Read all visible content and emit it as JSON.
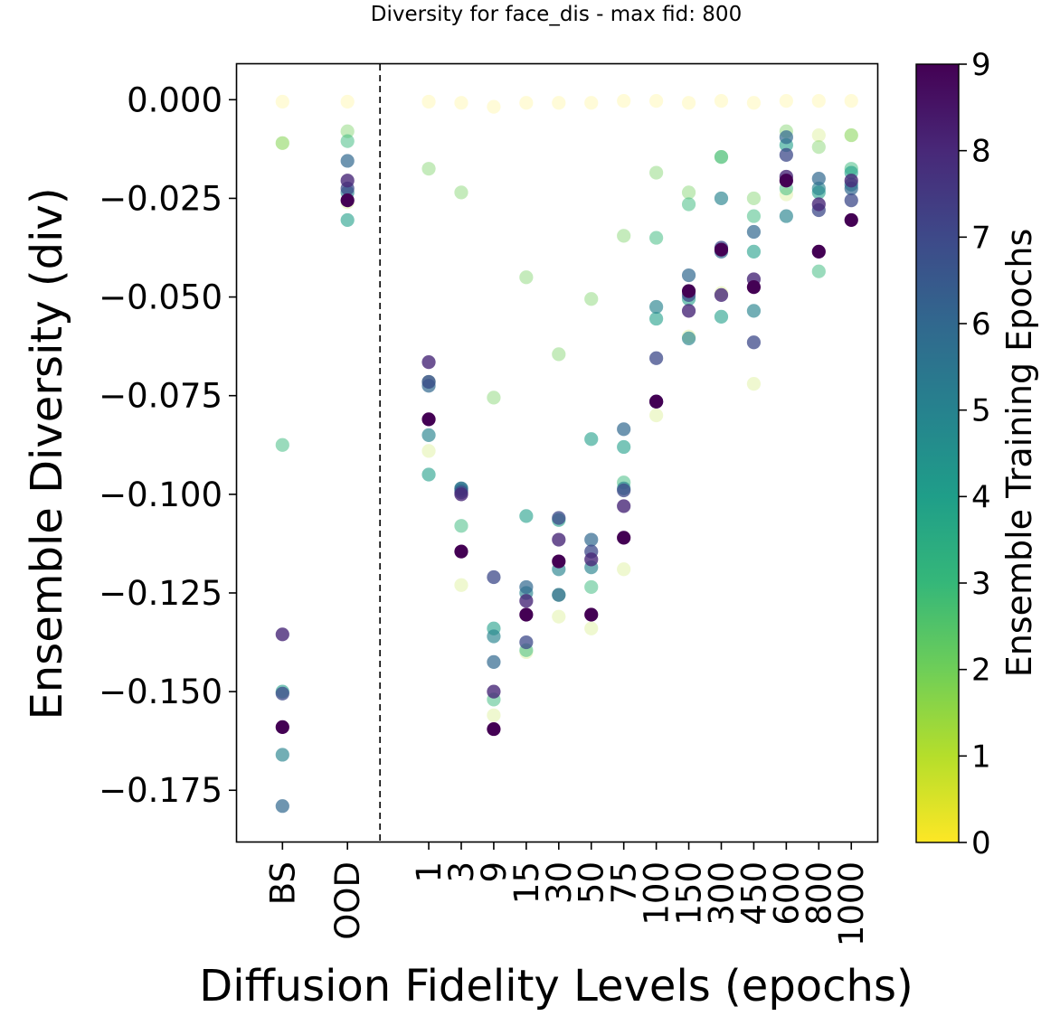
{
  "chart_data": {
    "type": "scatter",
    "title": "Diversity for face_dis - max fid: 800",
    "xlabel": "Diffusion Fidelity Levels (epochs)",
    "ylabel": "Ensemble Diversity (div)",
    "colorbar_label": "Ensemble Training Epochs",
    "colorbar_ticks": [
      "0",
      "1",
      "2",
      "3",
      "4",
      "5",
      "6",
      "7",
      "8",
      "9"
    ],
    "colorbar_range": [
      0,
      9
    ],
    "colormap": "viridis_r",
    "categories": [
      "BS",
      "OOD",
      "1",
      "3",
      "9",
      "15",
      "30",
      "50",
      "75",
      "100",
      "150",
      "300",
      "450",
      "600",
      "800",
      "1000"
    ],
    "category_positions": [
      0,
      1,
      2.25,
      2.75,
      3.25,
      3.75,
      4.25,
      4.75,
      5.25,
      5.75,
      6.25,
      6.75,
      7.25,
      7.75,
      8.25,
      8.75
    ],
    "separator_position": 1.5,
    "xlim": [
      -0.7,
      9.15
    ],
    "ylim": [
      -0.188,
      0.009
    ],
    "y_ticks": [
      0.0,
      -0.025,
      -0.05,
      -0.075,
      -0.1,
      -0.125,
      -0.15,
      -0.175
    ],
    "y_tick_labels": [
      "0.000",
      "−0.025",
      "−0.050",
      "−0.075",
      "−0.100",
      "−0.125",
      "−0.150",
      "−0.175"
    ],
    "series": [
      {
        "name": "0",
        "values": [
          -0.0005,
          -0.0005,
          -0.0005,
          -0.0008,
          -0.0018,
          -0.0008,
          -0.0008,
          -0.0008,
          -0.0003,
          -0.0003,
          -0.0008,
          -0.0003,
          -0.0008,
          -0.0003,
          -0.0003,
          -0.0003
        ]
      },
      {
        "name": "1",
        "values": [
          -0.011,
          -0.026,
          -0.089,
          -0.123,
          -0.156,
          -0.14,
          -0.131,
          -0.134,
          -0.119,
          -0.08,
          -0.06,
          -0.049,
          -0.072,
          -0.024,
          -0.009,
          -0.009
        ]
      },
      {
        "name": "2",
        "values": [
          -0.011,
          -0.008,
          -0.0175,
          -0.0235,
          -0.0755,
          -0.045,
          -0.0645,
          -0.0505,
          -0.0345,
          -0.0185,
          -0.0235,
          -0.0145,
          -0.025,
          -0.008,
          -0.012,
          -0.009
        ]
      },
      {
        "name": "3",
        "values": [
          -0.0875,
          -0.0105,
          -0.0715,
          -0.108,
          -0.152,
          -0.1395,
          -0.1255,
          -0.1235,
          -0.097,
          -0.035,
          -0.0265,
          -0.0145,
          -0.0295,
          -0.0225,
          -0.0435,
          -0.0175
        ]
      },
      {
        "name": "4",
        "values": [
          -0.15,
          -0.0305,
          -0.095,
          -0.0985,
          -0.134,
          -0.1055,
          -0.1065,
          -0.086,
          -0.088,
          -0.0555,
          -0.0505,
          -0.055,
          -0.0385,
          -0.0115,
          -0.0235,
          -0.0185
        ]
      },
      {
        "name": "5",
        "values": [
          -0.166,
          -0.0235,
          -0.085,
          -0.099,
          -0.136,
          -0.125,
          -0.119,
          -0.1185,
          -0.0985,
          -0.0525,
          -0.0605,
          -0.025,
          -0.0535,
          -0.0295,
          -0.0225,
          -0.0215
        ]
      },
      {
        "name": "6",
        "values": [
          -0.179,
          -0.0155,
          -0.0725,
          -0.0985,
          -0.1425,
          -0.1235,
          -0.1255,
          -0.1115,
          -0.0835,
          -0.0765,
          -0.0445,
          -0.0385,
          -0.0335,
          -0.0095,
          -0.02,
          -0.0225
        ]
      },
      {
        "name": "7",
        "values": [
          -0.1505,
          -0.0225,
          -0.0715,
          -0.0995,
          -0.121,
          -0.1375,
          -0.106,
          -0.1145,
          -0.099,
          -0.0655,
          -0.0495,
          -0.0375,
          -0.0615,
          -0.014,
          -0.028,
          -0.0255
        ]
      },
      {
        "name": "8",
        "values": [
          -0.1355,
          -0.0205,
          -0.0665,
          -0.1,
          -0.15,
          -0.127,
          -0.1115,
          -0.1165,
          -0.103,
          -0.0765,
          -0.0535,
          -0.0495,
          -0.0455,
          -0.0195,
          -0.0265,
          -0.0205
        ]
      },
      {
        "name": "9",
        "values": [
          -0.159,
          -0.0255,
          -0.081,
          -0.1145,
          -0.1595,
          -0.1305,
          -0.117,
          -0.1305,
          -0.111,
          -0.0765,
          -0.0485,
          -0.038,
          -0.0475,
          -0.0205,
          -0.0385,
          -0.0305
        ]
      }
    ]
  }
}
